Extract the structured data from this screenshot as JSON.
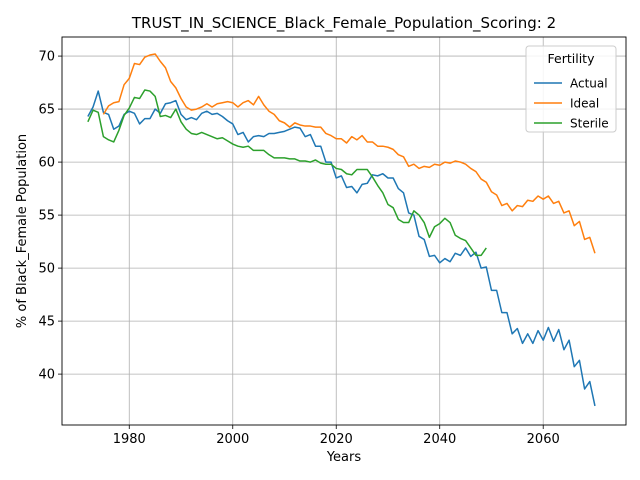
{
  "chart_data": {
    "type": "line",
    "title": "TRUST_IN_SCIENCE_Black_Female_Population_Scoring: 2",
    "xlabel": "Years",
    "ylabel": "% of Black_Female Population",
    "xlim": [
      1967,
      2076
    ],
    "ylim": [
      35.2,
      71.8
    ],
    "xticks": [
      1980,
      2000,
      2020,
      2040,
      2060
    ],
    "yticks": [
      40,
      45,
      50,
      55,
      60,
      65,
      70
    ],
    "grid": true,
    "legend": {
      "title": "Fertility",
      "position": "top-right"
    },
    "series": [
      {
        "name": "Actual",
        "color": "#1f77b4",
        "x": [
          1972,
          1973,
          1974,
          1975,
          1976,
          1977,
          1978,
          1979,
          1980,
          1981,
          1982,
          1983,
          1984,
          1985,
          1986,
          1987,
          1988,
          1989,
          1990,
          1991,
          1992,
          1993,
          1994,
          1995,
          1996,
          1997,
          1998,
          1999,
          2000,
          2001,
          2002,
          2003,
          2004,
          2005,
          2006,
          2007,
          2008,
          2009,
          2010,
          2011,
          2012,
          2013,
          2014,
          2015,
          2016,
          2017,
          2018,
          2019,
          2020,
          2021,
          2022,
          2023,
          2024,
          2025,
          2026,
          2027,
          2028,
          2029,
          2030,
          2031,
          2032,
          2033,
          2034,
          2035,
          2036,
          2037,
          2038,
          2039,
          2040,
          2041,
          2042,
          2043,
          2044,
          2045,
          2046,
          2047,
          2048,
          2049,
          2050,
          2051,
          2052,
          2053,
          2054,
          2055,
          2056,
          2057,
          2058,
          2059,
          2060,
          2061,
          2062,
          2063,
          2064,
          2065,
          2066,
          2067,
          2068,
          2069,
          2070
        ],
        "values": [
          64.3,
          65.2,
          66.7,
          64.7,
          64.5,
          63.1,
          63.4,
          64.5,
          64.8,
          64.6,
          63.6,
          64.1,
          64.1,
          65.0,
          64.6,
          65.5,
          65.6,
          65.8,
          64.5,
          64.0,
          64.2,
          64.0,
          64.6,
          64.8,
          64.5,
          64.6,
          64.3,
          63.9,
          63.6,
          62.6,
          62.8,
          61.9,
          62.4,
          62.5,
          62.4,
          62.7,
          62.7,
          62.8,
          62.9,
          63.1,
          63.3,
          63.2,
          62.4,
          62.6,
          61.5,
          61.5,
          60.0,
          60.0,
          58.5,
          58.7,
          57.6,
          57.7,
          57.1,
          57.9,
          58.0,
          58.8,
          58.7,
          58.9,
          58.5,
          58.5,
          57.5,
          57.1,
          55.2,
          55.0,
          53.0,
          52.7,
          51.1,
          51.2,
          50.5,
          50.9,
          50.6,
          51.4,
          51.2,
          51.9,
          51.1,
          51.5,
          50.0,
          50.1,
          47.9,
          47.9,
          45.8,
          45.8,
          43.8,
          44.3,
          42.9,
          43.8,
          42.9,
          44.1,
          43.2,
          44.4,
          43.1,
          44.2,
          42.3,
          43.2,
          40.7,
          41.3,
          38.6,
          39.3,
          37.0
        ]
      },
      {
        "name": "Ideal",
        "color": "#ff7f0e",
        "x": [
          1975,
          1976,
          1977,
          1978,
          1979,
          1980,
          1981,
          1982,
          1983,
          1984,
          1985,
          1986,
          1987,
          1988,
          1989,
          1990,
          1991,
          1992,
          1993,
          1994,
          1995,
          1996,
          1997,
          1998,
          1999,
          2000,
          2001,
          2002,
          2003,
          2004,
          2005,
          2006,
          2007,
          2008,
          2009,
          2010,
          2011,
          2012,
          2013,
          2014,
          2015,
          2016,
          2017,
          2018,
          2019,
          2020,
          2021,
          2022,
          2023,
          2024,
          2025,
          2026,
          2027,
          2028,
          2029,
          2030,
          2031,
          2032,
          2033,
          2034,
          2035,
          2036,
          2037,
          2038,
          2039,
          2040,
          2041,
          2042,
          2043,
          2044,
          2045,
          2046,
          2047,
          2048,
          2049,
          2050,
          2051,
          2052,
          2053,
          2054,
          2055,
          2056,
          2057,
          2058,
          2059,
          2060,
          2061,
          2062,
          2063,
          2064,
          2065,
          2066,
          2067,
          2068,
          2069,
          2070
        ],
        "values": [
          64.5,
          65.3,
          65.6,
          65.7,
          67.3,
          67.9,
          69.3,
          69.2,
          69.9,
          70.1,
          70.2,
          69.5,
          68.9,
          67.6,
          67.0,
          66.0,
          65.2,
          64.9,
          65.0,
          65.2,
          65.5,
          65.2,
          65.5,
          65.6,
          65.7,
          65.6,
          65.2,
          65.6,
          65.8,
          65.4,
          66.2,
          65.4,
          64.8,
          64.5,
          63.9,
          63.7,
          63.3,
          63.7,
          63.5,
          63.4,
          63.4,
          63.3,
          63.3,
          62.7,
          62.5,
          62.2,
          62.2,
          61.8,
          62.4,
          62.1,
          62.5,
          61.9,
          61.9,
          61.5,
          61.5,
          61.4,
          61.2,
          60.7,
          60.5,
          59.6,
          59.8,
          59.4,
          59.6,
          59.5,
          59.8,
          59.7,
          60.0,
          59.9,
          60.1,
          60.0,
          59.8,
          59.4,
          59.1,
          58.4,
          58.1,
          57.2,
          56.9,
          55.9,
          56.1,
          55.4,
          55.9,
          55.8,
          56.4,
          56.3,
          56.8,
          56.5,
          56.8,
          56.1,
          56.3,
          55.2,
          55.4,
          54.0,
          54.4,
          52.7,
          52.9,
          51.4
        ]
      },
      {
        "name": "Sterile",
        "color": "#2ca02c",
        "x": [
          1972,
          1973,
          1974,
          1975,
          1976,
          1977,
          1978,
          1979,
          1980,
          1981,
          1982,
          1983,
          1984,
          1985,
          1986,
          1987,
          1988,
          1989,
          1990,
          1991,
          1992,
          1993,
          1994,
          1995,
          1996,
          1997,
          1998,
          1999,
          2000,
          2001,
          2002,
          2003,
          2004,
          2005,
          2006,
          2007,
          2008,
          2009,
          2010,
          2011,
          2012,
          2013,
          2014,
          2015,
          2016,
          2017,
          2018,
          2019,
          2020,
          2021,
          2022,
          2023,
          2024,
          2025,
          2026,
          2027,
          2028,
          2029,
          2030,
          2031,
          2032,
          2033,
          2034,
          2035,
          2036,
          2037,
          2038,
          2039,
          2040,
          2041,
          2042,
          2043,
          2044,
          2045,
          2046,
          2047,
          2048,
          2049
        ],
        "values": [
          63.8,
          64.9,
          64.7,
          62.4,
          62.1,
          61.9,
          63.0,
          64.4,
          65.1,
          66.1,
          66.0,
          66.8,
          66.7,
          66.2,
          64.3,
          64.4,
          64.2,
          65.0,
          63.8,
          63.1,
          62.7,
          62.6,
          62.8,
          62.6,
          62.4,
          62.2,
          62.3,
          62.0,
          61.7,
          61.5,
          61.4,
          61.5,
          61.1,
          61.1,
          61.1,
          60.7,
          60.4,
          60.4,
          60.4,
          60.3,
          60.3,
          60.1,
          60.1,
          60.0,
          60.2,
          59.9,
          59.8,
          59.8,
          59.4,
          59.3,
          58.9,
          58.8,
          59.3,
          59.3,
          59.3,
          58.6,
          57.8,
          57.1,
          56.0,
          55.7,
          54.6,
          54.3,
          54.3,
          55.4,
          55.0,
          54.3,
          52.9,
          53.9,
          54.2,
          54.7,
          54.3,
          53.1,
          52.8,
          52.6,
          51.9,
          51.2,
          51.2,
          51.9
        ]
      }
    ]
  }
}
